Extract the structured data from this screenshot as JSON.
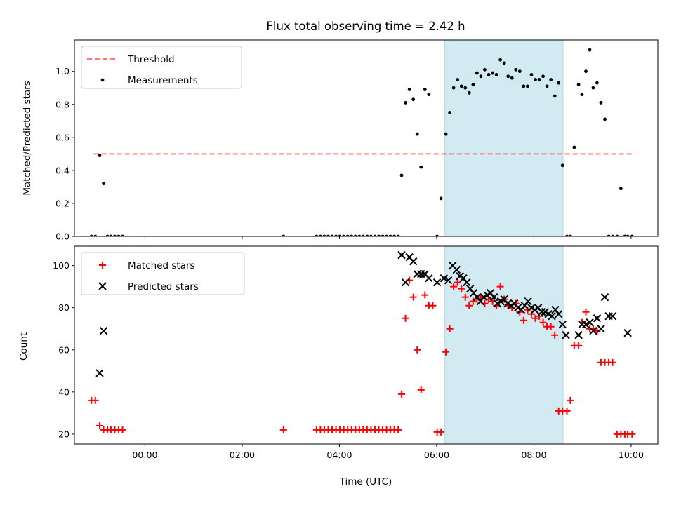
{
  "chart_data": [
    {
      "type": "scatter",
      "title": "Flux total observing time = 2.42 h",
      "xlabel": "",
      "ylabel": "Matched/Predicted stars",
      "x_unit": "hours (UTC)",
      "xlim": [
        -1.45,
        10.55
      ],
      "ylim": [
        0,
        1.19
      ],
      "yticks": [
        0.0,
        0.2,
        0.4,
        0.6,
        0.8,
        1.0
      ],
      "ytick_labels": [
        "0.0",
        "0.2",
        "0.4",
        "0.6",
        "0.8",
        "1.0"
      ],
      "highlight_span": [
        6.17,
        8.6
      ],
      "highlight_color": "#add8e6",
      "legend_position": "upper left",
      "series": [
        {
          "name": "Threshold",
          "style": "dashed-line",
          "color": "#ff7777",
          "x": [
            -1.05,
            10.05
          ],
          "y": [
            0.5,
            0.5
          ]
        },
        {
          "name": "Measurements",
          "style": "dot",
          "color": "#000000",
          "x": [
            -1.1,
            -1.02,
            -0.93,
            -0.85,
            -0.77,
            -0.7,
            -0.62,
            -0.54,
            -0.46,
            2.85,
            3.53,
            3.61,
            3.69,
            3.77,
            3.85,
            3.93,
            4.01,
            4.09,
            4.17,
            4.25,
            4.33,
            4.41,
            4.49,
            4.57,
            4.65,
            4.73,
            4.81,
            4.89,
            4.97,
            5.05,
            5.13,
            5.21,
            5.28,
            5.36,
            5.44,
            5.52,
            5.6,
            5.68,
            5.76,
            5.84,
            6.01,
            6.09,
            6.19,
            6.27,
            6.35,
            6.43,
            6.51,
            6.59,
            6.67,
            6.75,
            6.83,
            6.91,
            6.99,
            7.07,
            7.15,
            7.23,
            7.31,
            7.39,
            7.47,
            7.55,
            7.63,
            7.71,
            7.79,
            7.87,
            7.95,
            8.03,
            8.11,
            8.19,
            8.27,
            8.35,
            8.43,
            8.51,
            8.59,
            8.68,
            8.75,
            8.83,
            8.92,
            8.99,
            9.07,
            9.15,
            9.22,
            9.3,
            9.38,
            9.46,
            9.54,
            9.62,
            9.71,
            9.79,
            9.87,
            9.93,
            10.02
          ],
          "y": [
            0.0,
            0.0,
            0.49,
            0.32,
            0.0,
            0.0,
            0.0,
            0.0,
            0.0,
            0.0,
            0.0,
            0.0,
            0.0,
            0.0,
            0.0,
            0.0,
            0.0,
            0.0,
            0.0,
            0.0,
            0.0,
            0.0,
            0.0,
            0.0,
            0.0,
            0.0,
            0.0,
            0.0,
            0.0,
            0.0,
            0.0,
            0.0,
            0.37,
            0.81,
            0.89,
            0.83,
            0.62,
            0.42,
            0.89,
            0.86,
            0.0,
            0.23,
            0.62,
            0.75,
            0.9,
            0.95,
            0.91,
            0.9,
            0.87,
            0.92,
            0.99,
            0.97,
            1.01,
            0.98,
            0.99,
            0.98,
            1.07,
            1.05,
            0.97,
            0.96,
            1.01,
            1.0,
            0.91,
            0.91,
            0.98,
            0.95,
            0.95,
            0.97,
            0.91,
            0.95,
            0.85,
            0.93,
            0.43,
            0.0,
            0.0,
            0.54,
            0.92,
            0.86,
            1.0,
            1.13,
            0.9,
            0.93,
            0.81,
            0.71,
            0.0,
            0.0,
            0.0,
            0.29,
            0.0,
            0.0,
            0.0
          ]
        }
      ]
    },
    {
      "type": "scatter",
      "title": "",
      "xlabel": "Time (UTC)",
      "ylabel": "Count",
      "x_unit": "hours (UTC)",
      "xlim": [
        -1.45,
        10.55
      ],
      "ylim": [
        15.3,
        109.2
      ],
      "xticks": [
        0,
        2,
        4,
        6,
        8,
        10
      ],
      "xtick_labels": [
        "00:00",
        "02:00",
        "04:00",
        "06:00",
        "08:00",
        "10:00"
      ],
      "yticks": [
        20,
        40,
        60,
        80,
        100
      ],
      "ytick_labels": [
        "20",
        "40",
        "60",
        "80",
        "100"
      ],
      "highlight_span": [
        6.17,
        8.6
      ],
      "highlight_color": "#add8e6",
      "legend_position": "upper left",
      "series": [
        {
          "name": "Matched stars",
          "style": "plus",
          "color": "#ff0000",
          "x": [
            -1.1,
            -1.02,
            -0.93,
            -0.85,
            -0.77,
            -0.7,
            -0.62,
            -0.54,
            -0.46,
            2.85,
            3.53,
            3.61,
            3.69,
            3.77,
            3.85,
            3.93,
            4.01,
            4.09,
            4.17,
            4.25,
            4.33,
            4.41,
            4.49,
            4.57,
            4.65,
            4.73,
            4.81,
            4.89,
            4.97,
            5.05,
            5.13,
            5.21,
            5.28,
            5.36,
            5.44,
            5.52,
            5.6,
            5.68,
            5.76,
            5.84,
            5.92,
            6.01,
            6.09,
            6.19,
            6.27,
            6.35,
            6.43,
            6.51,
            6.59,
            6.67,
            6.75,
            6.83,
            6.91,
            6.99,
            7.07,
            7.15,
            7.23,
            7.31,
            7.39,
            7.47,
            7.55,
            7.63,
            7.71,
            7.79,
            7.87,
            7.95,
            8.03,
            8.11,
            8.19,
            8.27,
            8.35,
            8.43,
            8.51,
            8.59,
            8.68,
            8.75,
            8.83,
            8.92,
            8.99,
            9.07,
            9.15,
            9.22,
            9.3,
            9.38,
            9.46,
            9.54,
            9.62,
            9.71,
            9.79,
            9.87,
            9.93,
            10.02
          ],
          "y": [
            36,
            36,
            24,
            22,
            22,
            22,
            22,
            22,
            22,
            22,
            22,
            22,
            22,
            22,
            22,
            22,
            22,
            22,
            22,
            22,
            22,
            22,
            22,
            22,
            22,
            22,
            22,
            22,
            22,
            22,
            22,
            22,
            39,
            75,
            93,
            85,
            60,
            41,
            86,
            81,
            81,
            21,
            21,
            59,
            70,
            90,
            92,
            89,
            85,
            81,
            83,
            84,
            85,
            82,
            84,
            83,
            81,
            90,
            84,
            81,
            80,
            82,
            78,
            74,
            79,
            77,
            75,
            76,
            73,
            71,
            71,
            67,
            31,
            31,
            31,
            36,
            62,
            62,
            73,
            78,
            70,
            70,
            69,
            54,
            54,
            54,
            54,
            20,
            20,
            20,
            20,
            20
          ]
        },
        {
          "name": "Predicted stars",
          "style": "x",
          "color": "#000000",
          "x": [
            -0.93,
            -0.85,
            5.28,
            5.36,
            5.44,
            5.52,
            5.6,
            5.68,
            5.76,
            5.84,
            6.01,
            6.15,
            6.24,
            6.33,
            6.41,
            6.48,
            6.55,
            6.62,
            6.69,
            6.76,
            6.83,
            6.9,
            6.97,
            7.04,
            7.11,
            7.18,
            7.25,
            7.32,
            7.39,
            7.46,
            7.53,
            7.6,
            7.67,
            7.74,
            7.81,
            7.88,
            7.95,
            8.02,
            8.09,
            8.16,
            8.23,
            8.3,
            8.37,
            8.44,
            8.51,
            8.59,
            8.66,
            8.92,
            8.99,
            9.07,
            9.15,
            9.22,
            9.3,
            9.38,
            9.46,
            9.54,
            9.62,
            9.93
          ],
          "y": [
            49,
            69,
            105,
            92,
            104,
            102,
            96,
            96,
            96,
            94,
            92,
            94,
            93,
            100,
            98,
            95,
            94,
            92,
            89,
            87,
            85,
            83,
            85,
            86,
            87,
            85,
            82,
            83,
            84,
            82,
            81,
            82,
            80,
            79,
            81,
            83,
            80,
            79,
            80,
            78,
            78,
            77,
            76,
            79,
            77,
            72,
            67,
            67,
            72,
            72,
            73,
            69,
            75,
            70,
            85,
            76,
            76,
            68
          ]
        }
      ]
    }
  ]
}
